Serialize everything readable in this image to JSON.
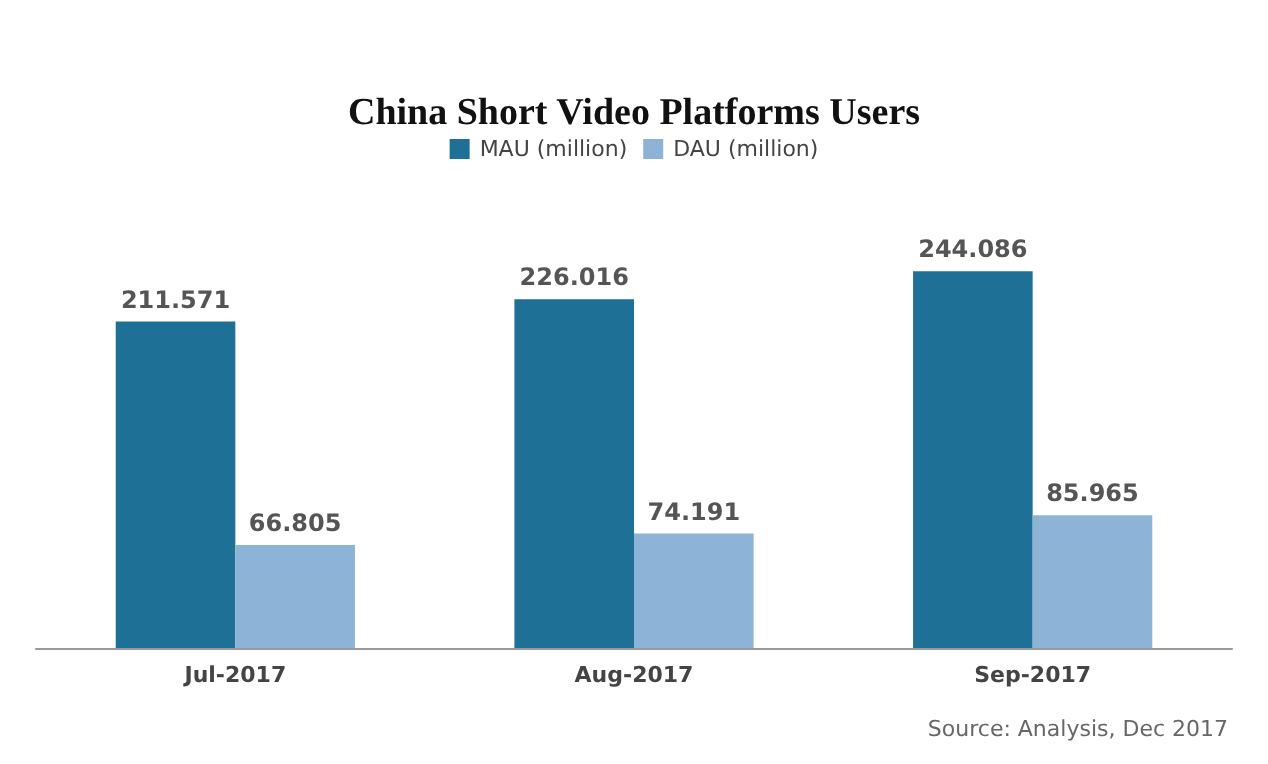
{
  "chart_data": {
    "type": "bar",
    "title": "China Short Video Platforms Users",
    "categories": [
      "Jul-2017",
      "Aug-2017",
      "Sep-2017"
    ],
    "series": [
      {
        "name": "MAU (million)",
        "color": "#1f7096",
        "values": [
          211.571,
          226.016,
          244.086
        ]
      },
      {
        "name": "DAU (million)",
        "color": "#8db3d6",
        "values": [
          66.805,
          74.191,
          85.965
        ]
      }
    ],
    "data_labels": true,
    "legend": "top",
    "grid": false,
    "annotations": [
      "Source: Analysis, Dec 2017"
    ]
  }
}
